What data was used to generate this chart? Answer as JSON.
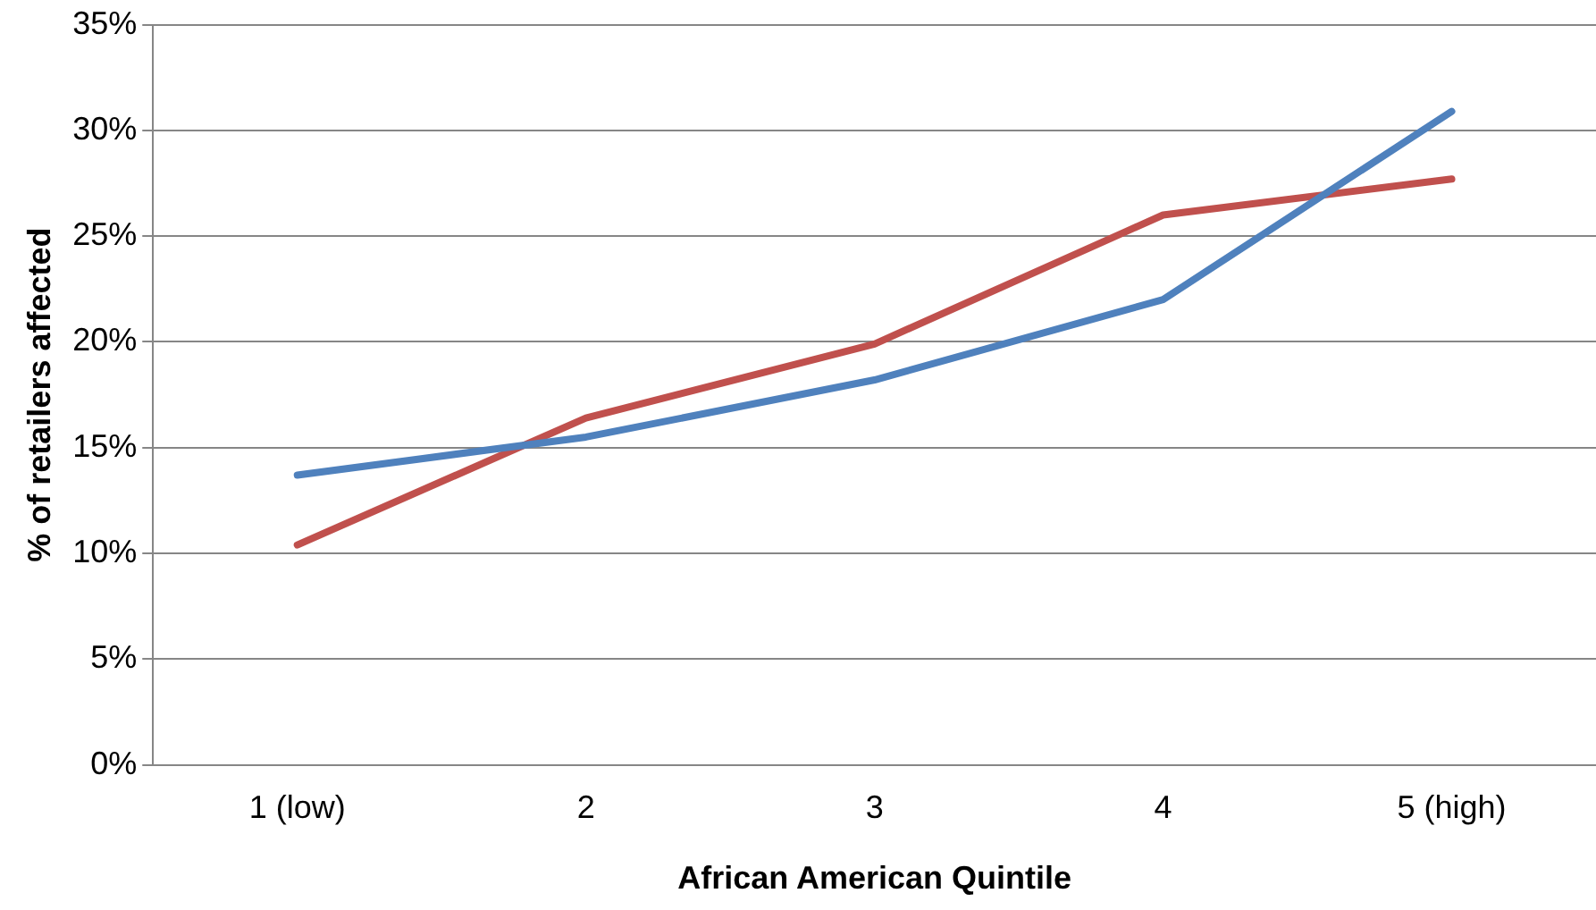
{
  "chart_data": {
    "type": "line",
    "xlabel": "African American Quintile",
    "ylabel": "% of retailers affected",
    "categories": [
      "1 (low)",
      "2",
      "3",
      "4",
      "5 (high)"
    ],
    "series": [
      {
        "color": "#4f81bd",
        "values": [
          13.7,
          15.5,
          18.2,
          22.0,
          30.9
        ]
      },
      {
        "color": "#c0504d",
        "values": [
          10.4,
          16.4,
          19.9,
          26.0,
          27.7
        ]
      }
    ],
    "ylim": [
      0,
      35
    ],
    "yticks": [
      {
        "value": 0,
        "label": "0%"
      },
      {
        "value": 5,
        "label": "5%"
      },
      {
        "value": 10,
        "label": "10%"
      },
      {
        "value": 15,
        "label": "15%"
      },
      {
        "value": 20,
        "label": "20%"
      },
      {
        "value": 25,
        "label": "25%"
      },
      {
        "value": 30,
        "label": "30%"
      },
      {
        "value": 35,
        "label": "35%"
      }
    ],
    "grid": "y",
    "legend": false,
    "marker": "none",
    "line_style": "solid"
  }
}
